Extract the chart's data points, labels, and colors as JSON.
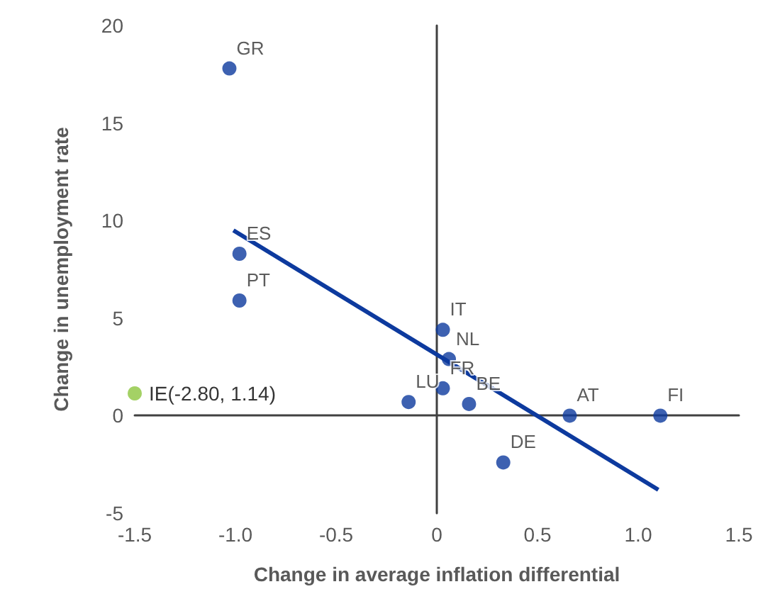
{
  "chart_data": {
    "type": "scatter",
    "xlabel": "Change in average inflation differential",
    "ylabel": "Change in unemployment rate",
    "xlim": [
      -1.5,
      1.5
    ],
    "xticks": [
      -1.5,
      {
        "value": -1,
        "label": "-1.0"
      },
      -0.5,
      0,
      0.5,
      {
        "value": 1,
        "label": "1.0"
      },
      1.5
    ],
    "ylim": [
      -5,
      20
    ],
    "yticks": [
      -5,
      0,
      5,
      10,
      15,
      20
    ],
    "marker": "circle",
    "series": [
      {
        "color": "#0d3a9e",
        "x": [
          -1.03,
          -0.98,
          -0.98,
          0.03,
          0.06,
          0.03,
          -0.14,
          0.16,
          0.66,
          1.11,
          0.33
        ],
        "values": [
          17.8,
          8.3,
          5.9,
          4.4,
          2.9,
          1.4,
          0.7,
          0.6,
          0.0,
          0.0,
          -2.4
        ],
        "value_labels": [
          "GR",
          "ES",
          "PT",
          "IT",
          "NL",
          "FR",
          "LU",
          "BE",
          "AT",
          "FI",
          "DE"
        ]
      },
      {
        "type": "line",
        "color": "#0d3a9e",
        "x": [
          -1.01,
          1.1
        ],
        "values": [
          9.5,
          -3.8
        ],
        "line_style": "solid",
        "marker": "none"
      }
    ],
    "annotations": [
      {
        "text": "IE(-2.80, 1.14)",
        "x": -1.5,
        "y": 1.14
      }
    ]
  }
}
